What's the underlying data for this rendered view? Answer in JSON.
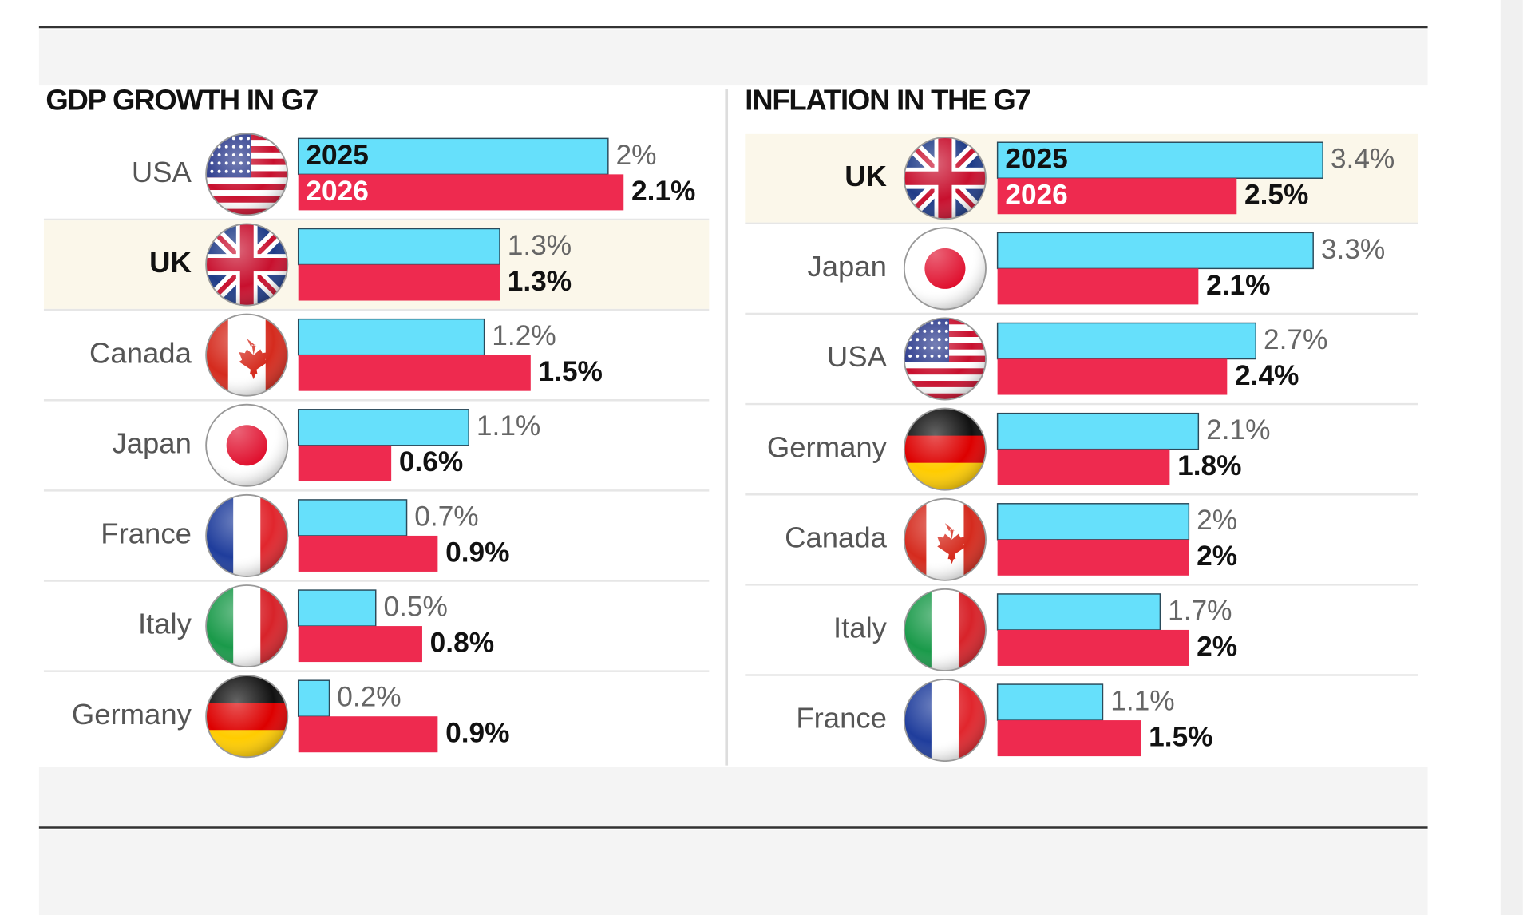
{
  "chart_data": [
    {
      "type": "bar",
      "title": "GDP GROWTH IN G7",
      "highlight": "UK",
      "categories": [
        "USA",
        "UK",
        "Canada",
        "Japan",
        "France",
        "Italy",
        "Germany"
      ],
      "series": [
        {
          "name": "2025",
          "color": "#66e0fb",
          "values": [
            2,
            1.3,
            1.2,
            1.1,
            0.7,
            0.5,
            0.2
          ],
          "value_labels": [
            "2%",
            "1.3%",
            "1.2%",
            "1.1%",
            "0.7%",
            "0.5%",
            "0.2%"
          ]
        },
        {
          "name": "2026",
          "color": "#ee2a4f",
          "values": [
            2.1,
            1.3,
            1.5,
            0.6,
            0.9,
            0.8,
            0.9
          ],
          "value_labels": [
            "2.1%",
            "1.3%",
            "1.5%",
            "0.6%",
            "0.9%",
            "0.8%",
            "0.9%"
          ]
        }
      ]
    },
    {
      "type": "bar",
      "title": "INFLATION IN THE G7",
      "highlight": "UK",
      "categories": [
        "UK",
        "Japan",
        "USA",
        "Germany",
        "Canada",
        "Italy",
        "France"
      ],
      "series": [
        {
          "name": "2025",
          "color": "#66e0fb",
          "values": [
            3.4,
            3.3,
            2.7,
            2.1,
            2,
            1.7,
            1.1
          ],
          "value_labels": [
            "3.4%",
            "3.3%",
            "2.7%",
            "2.1%",
            "2%",
            "1.7%",
            "1.1%"
          ]
        },
        {
          "name": "2026",
          "color": "#ee2a4f",
          "values": [
            2.5,
            2.1,
            2.4,
            1.8,
            2,
            2,
            1.5
          ],
          "value_labels": [
            "2.5%",
            "2.1%",
            "2.4%",
            "1.8%",
            "2%",
            "2%",
            "1.5%"
          ]
        }
      ]
    }
  ]
}
